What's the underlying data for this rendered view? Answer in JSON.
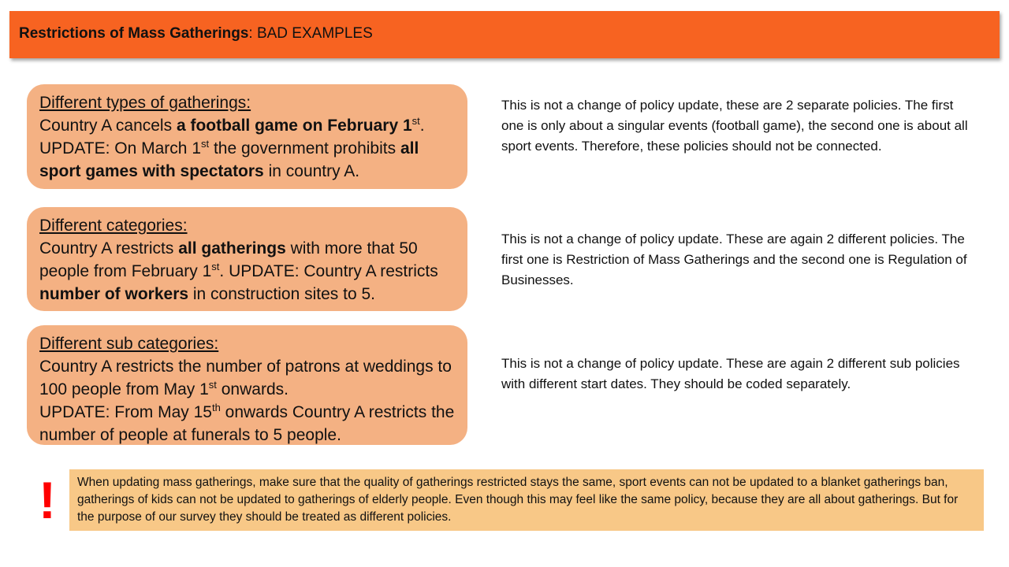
{
  "header": {
    "title_bold": "Restrictions of Mass Gatherings",
    "title_rest": ": BAD EXAMPLES",
    "background_color": "#f76321"
  },
  "examples": [
    {
      "heading": "Different types of gatherings:",
      "l1a": "Country A cancels ",
      "l1b": "a football game on February 1",
      "l1sup": "st",
      "l1c": ".",
      "l2a": "UPDATE: On March 1",
      "l2sup": "st",
      "l2b": " the government prohibits ",
      "l2c": "all sport games with spectators",
      "l2d": " in country A.",
      "explanation": "This is not a change of policy update, these are 2 separate policies. The first one is only about a singular events (football game), the second one is about all sport events. Therefore, these policies should not be connected."
    },
    {
      "heading": "Different categories:",
      "a": "Country A restricts ",
      "b": "all gatherings",
      "c": " with more that 50 people from February 1",
      "sup": "st",
      "d": ". UPDATE: Country A restricts ",
      "e": "number of workers",
      "f": " in construction sites to 5.",
      "explanation": "This is not a change of policy update. These are again 2 different policies. The first one is Restriction of Mass Gatherings and the second one is Regulation of Businesses."
    },
    {
      "heading": "Different sub categories:",
      "a": "Country A restricts the number of patrons at weddings to 100 people from May 1",
      "sup1": "st",
      "b": " onwards.",
      "c": "UPDATE: From May 15",
      "sup2": "th",
      "d": " onwards Country A restricts the number of people at funerals to 5 people.",
      "explanation": "This is not a change of policy update. These are again 2 different sub policies with different start dates. They should be coded separately."
    }
  ],
  "warning": {
    "mark": "!",
    "text": "When updating mass gatherings, make sure that the quality of gatherings restricted stays the same, sport events can not be updated to a blanket gatherings ban, gatherings of kids can not be updated to gatherings of elderly people. Even though this may feel like the same policy, because they are all about gatherings. But for the purpose of our survey they should be treated as different policies."
  },
  "colors": {
    "card": "#f4b183",
    "warning_box": "#f8c887",
    "warning_mark": "#ff0000"
  }
}
